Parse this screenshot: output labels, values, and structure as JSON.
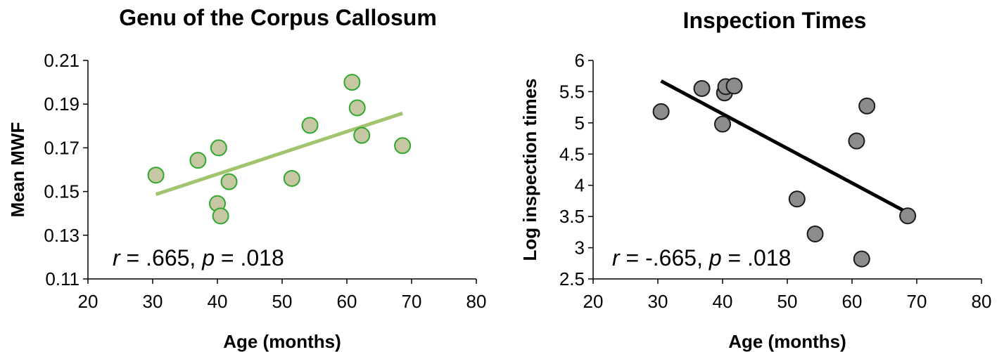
{
  "chart_data": [
    {
      "type": "scatter",
      "title": "Genu of the Corpus Callosum",
      "xlabel": "Age (months)",
      "ylabel": "Mean MWF",
      "xlim": [
        20,
        80
      ],
      "ylim": [
        0.11,
        0.21
      ],
      "xticks": [
        20,
        30,
        40,
        50,
        60,
        70,
        80
      ],
      "yticks": [
        0.11,
        0.13,
        0.15,
        0.17,
        0.19,
        0.21
      ],
      "xtick_labels": [
        "20",
        "30",
        "40",
        "50",
        "60",
        "70",
        "80"
      ],
      "ytick_labels": [
        "0.11",
        "0.13",
        "0.15",
        "0.17",
        "0.19",
        "0.21"
      ],
      "grid": false,
      "series": [
        {
          "x": [
            30.5,
            37,
            40,
            40.2,
            40.5,
            41.8,
            51.5,
            54.3,
            60.8,
            61.6,
            62.3,
            68.6
          ],
          "y": [
            0.1575,
            0.1643,
            0.1445,
            0.17,
            0.1388,
            0.1545,
            0.156,
            0.1803,
            0.2,
            0.1883,
            0.1757,
            0.171
          ]
        }
      ],
      "trendline": {
        "x": [
          30.5,
          68.6
        ],
        "y": [
          0.1487,
          0.1858
        ]
      },
      "annotation": {
        "r_label": "r",
        "r_text": " = .665, ",
        "p_label": "p",
        "p_text": " = .018"
      },
      "colors": {
        "marker_fill": "#c7c7a3",
        "marker_edge": "#2ea82e",
        "trendline": "#a3c46e"
      }
    },
    {
      "type": "scatter",
      "title": "Inspection Times",
      "xlabel": "Age (months)",
      "ylabel": "Log inspection times",
      "xlim": [
        20,
        80
      ],
      "ylim": [
        2.5,
        6
      ],
      "xticks": [
        20,
        30,
        40,
        50,
        60,
        70,
        80
      ],
      "yticks": [
        2.5,
        3,
        3.5,
        4,
        4.5,
        5,
        5.5,
        6
      ],
      "xtick_labels": [
        "20",
        "30",
        "40",
        "50",
        "60",
        "70",
        "80"
      ],
      "ytick_labels": [
        "2.5",
        "3",
        "3.5",
        "4",
        "4.5",
        "5",
        "5.5",
        "6"
      ],
      "grid": false,
      "series": [
        {
          "x": [
            30.5,
            36.8,
            40,
            40.3,
            40.5,
            41.8,
            51.5,
            54.3,
            60.7,
            61.5,
            62.3,
            68.6
          ],
          "y": [
            5.18,
            5.55,
            4.98,
            5.48,
            5.58,
            5.59,
            3.78,
            3.22,
            4.71,
            2.82,
            5.27,
            3.51
          ]
        }
      ],
      "trendline": {
        "x": [
          30.5,
          68.6
        ],
        "y": [
          5.67,
          3.56
        ]
      },
      "annotation": {
        "r_label": "r",
        "r_text": " = -.665, ",
        "p_label": "p",
        "p_text": " = .018"
      },
      "colors": {
        "marker_fill": "#8c8c8c",
        "marker_edge": "#1a1a1a",
        "trendline": "#000000"
      }
    }
  ]
}
